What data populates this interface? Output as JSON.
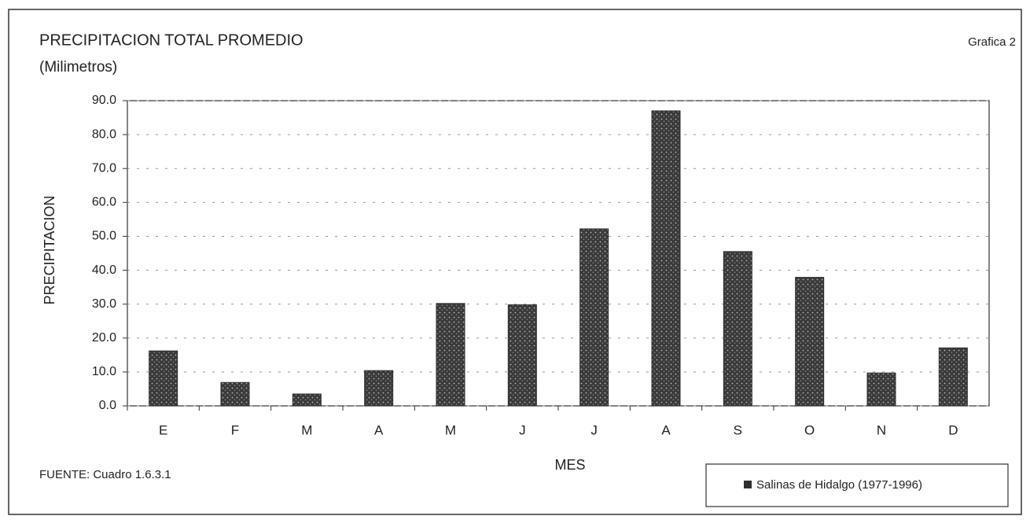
{
  "chart_data": {
    "type": "bar",
    "title": "PRECIPITACION TOTAL PROMEDIO",
    "subtitle": "(Milimetros)",
    "annotation": "Grafica 2",
    "source": "FUENTE: Cuadro 1.6.3.1",
    "x_label": "MES",
    "y_label": "PRECIPITACION",
    "categories": [
      "E",
      "F",
      "M",
      "A",
      "M",
      "J",
      "J",
      "A",
      "S",
      "O",
      "N",
      "D"
    ],
    "series": [
      {
        "name": "Salinas de Hidalgo (1977-1996)",
        "color": "#2e2e2e",
        "values": [
          16.2,
          6.9,
          3.5,
          10.4,
          30.2,
          29.8,
          52.2,
          87.0,
          45.5,
          37.9,
          9.7,
          17.1
        ]
      }
    ],
    "ylim": [
      0,
      90
    ],
    "yticks": [
      {
        "value": 0,
        "label": "0.0"
      },
      {
        "value": 10,
        "label": "10.0"
      },
      {
        "value": 20,
        "label": "20.0"
      },
      {
        "value": 30,
        "label": "30.0"
      },
      {
        "value": 40,
        "label": "40.0"
      },
      {
        "value": 50,
        "label": "50.0"
      },
      {
        "value": 60,
        "label": "60.0"
      },
      {
        "value": 70,
        "label": "70.0"
      },
      {
        "value": 80,
        "label": "80.0"
      },
      {
        "value": 90,
        "label": "90.0"
      }
    ],
    "grid": true,
    "legend": "bottom-right"
  }
}
